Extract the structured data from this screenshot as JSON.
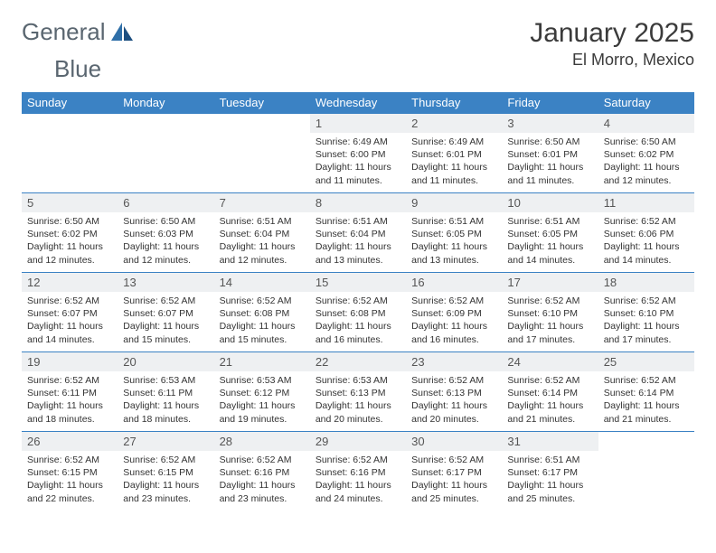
{
  "brand": {
    "name_part1": "General",
    "name_part2": "Blue"
  },
  "colors": {
    "header_bg": "#3b82c4",
    "header_text": "#ffffff",
    "daynum_bg": "#eef0f2",
    "border": "#3b82c4",
    "brandA": "#2f6fa8",
    "brandB": "#1d4f80"
  },
  "title": "January 2025",
  "location": "El Morro, Mexico",
  "weekdays": [
    "Sunday",
    "Monday",
    "Tuesday",
    "Wednesday",
    "Thursday",
    "Friday",
    "Saturday"
  ],
  "weeks": [
    [
      {
        "n": "",
        "sr": "",
        "ss": "",
        "dl": ""
      },
      {
        "n": "",
        "sr": "",
        "ss": "",
        "dl": ""
      },
      {
        "n": "",
        "sr": "",
        "ss": "",
        "dl": ""
      },
      {
        "n": "1",
        "sr": "Sunrise: 6:49 AM",
        "ss": "Sunset: 6:00 PM",
        "dl": "Daylight: 11 hours and 11 minutes."
      },
      {
        "n": "2",
        "sr": "Sunrise: 6:49 AM",
        "ss": "Sunset: 6:01 PM",
        "dl": "Daylight: 11 hours and 11 minutes."
      },
      {
        "n": "3",
        "sr": "Sunrise: 6:50 AM",
        "ss": "Sunset: 6:01 PM",
        "dl": "Daylight: 11 hours and 11 minutes."
      },
      {
        "n": "4",
        "sr": "Sunrise: 6:50 AM",
        "ss": "Sunset: 6:02 PM",
        "dl": "Daylight: 11 hours and 12 minutes."
      }
    ],
    [
      {
        "n": "5",
        "sr": "Sunrise: 6:50 AM",
        "ss": "Sunset: 6:02 PM",
        "dl": "Daylight: 11 hours and 12 minutes."
      },
      {
        "n": "6",
        "sr": "Sunrise: 6:50 AM",
        "ss": "Sunset: 6:03 PM",
        "dl": "Daylight: 11 hours and 12 minutes."
      },
      {
        "n": "7",
        "sr": "Sunrise: 6:51 AM",
        "ss": "Sunset: 6:04 PM",
        "dl": "Daylight: 11 hours and 12 minutes."
      },
      {
        "n": "8",
        "sr": "Sunrise: 6:51 AM",
        "ss": "Sunset: 6:04 PM",
        "dl": "Daylight: 11 hours and 13 minutes."
      },
      {
        "n": "9",
        "sr": "Sunrise: 6:51 AM",
        "ss": "Sunset: 6:05 PM",
        "dl": "Daylight: 11 hours and 13 minutes."
      },
      {
        "n": "10",
        "sr": "Sunrise: 6:51 AM",
        "ss": "Sunset: 6:05 PM",
        "dl": "Daylight: 11 hours and 14 minutes."
      },
      {
        "n": "11",
        "sr": "Sunrise: 6:52 AM",
        "ss": "Sunset: 6:06 PM",
        "dl": "Daylight: 11 hours and 14 minutes."
      }
    ],
    [
      {
        "n": "12",
        "sr": "Sunrise: 6:52 AM",
        "ss": "Sunset: 6:07 PM",
        "dl": "Daylight: 11 hours and 14 minutes."
      },
      {
        "n": "13",
        "sr": "Sunrise: 6:52 AM",
        "ss": "Sunset: 6:07 PM",
        "dl": "Daylight: 11 hours and 15 minutes."
      },
      {
        "n": "14",
        "sr": "Sunrise: 6:52 AM",
        "ss": "Sunset: 6:08 PM",
        "dl": "Daylight: 11 hours and 15 minutes."
      },
      {
        "n": "15",
        "sr": "Sunrise: 6:52 AM",
        "ss": "Sunset: 6:08 PM",
        "dl": "Daylight: 11 hours and 16 minutes."
      },
      {
        "n": "16",
        "sr": "Sunrise: 6:52 AM",
        "ss": "Sunset: 6:09 PM",
        "dl": "Daylight: 11 hours and 16 minutes."
      },
      {
        "n": "17",
        "sr": "Sunrise: 6:52 AM",
        "ss": "Sunset: 6:10 PM",
        "dl": "Daylight: 11 hours and 17 minutes."
      },
      {
        "n": "18",
        "sr": "Sunrise: 6:52 AM",
        "ss": "Sunset: 6:10 PM",
        "dl": "Daylight: 11 hours and 17 minutes."
      }
    ],
    [
      {
        "n": "19",
        "sr": "Sunrise: 6:52 AM",
        "ss": "Sunset: 6:11 PM",
        "dl": "Daylight: 11 hours and 18 minutes."
      },
      {
        "n": "20",
        "sr": "Sunrise: 6:53 AM",
        "ss": "Sunset: 6:11 PM",
        "dl": "Daylight: 11 hours and 18 minutes."
      },
      {
        "n": "21",
        "sr": "Sunrise: 6:53 AM",
        "ss": "Sunset: 6:12 PM",
        "dl": "Daylight: 11 hours and 19 minutes."
      },
      {
        "n": "22",
        "sr": "Sunrise: 6:53 AM",
        "ss": "Sunset: 6:13 PM",
        "dl": "Daylight: 11 hours and 20 minutes."
      },
      {
        "n": "23",
        "sr": "Sunrise: 6:52 AM",
        "ss": "Sunset: 6:13 PM",
        "dl": "Daylight: 11 hours and 20 minutes."
      },
      {
        "n": "24",
        "sr": "Sunrise: 6:52 AM",
        "ss": "Sunset: 6:14 PM",
        "dl": "Daylight: 11 hours and 21 minutes."
      },
      {
        "n": "25",
        "sr": "Sunrise: 6:52 AM",
        "ss": "Sunset: 6:14 PM",
        "dl": "Daylight: 11 hours and 21 minutes."
      }
    ],
    [
      {
        "n": "26",
        "sr": "Sunrise: 6:52 AM",
        "ss": "Sunset: 6:15 PM",
        "dl": "Daylight: 11 hours and 22 minutes."
      },
      {
        "n": "27",
        "sr": "Sunrise: 6:52 AM",
        "ss": "Sunset: 6:15 PM",
        "dl": "Daylight: 11 hours and 23 minutes."
      },
      {
        "n": "28",
        "sr": "Sunrise: 6:52 AM",
        "ss": "Sunset: 6:16 PM",
        "dl": "Daylight: 11 hours and 23 minutes."
      },
      {
        "n": "29",
        "sr": "Sunrise: 6:52 AM",
        "ss": "Sunset: 6:16 PM",
        "dl": "Daylight: 11 hours and 24 minutes."
      },
      {
        "n": "30",
        "sr": "Sunrise: 6:52 AM",
        "ss": "Sunset: 6:17 PM",
        "dl": "Daylight: 11 hours and 25 minutes."
      },
      {
        "n": "31",
        "sr": "Sunrise: 6:51 AM",
        "ss": "Sunset: 6:17 PM",
        "dl": "Daylight: 11 hours and 25 minutes."
      },
      {
        "n": "",
        "sr": "",
        "ss": "",
        "dl": ""
      }
    ]
  ]
}
